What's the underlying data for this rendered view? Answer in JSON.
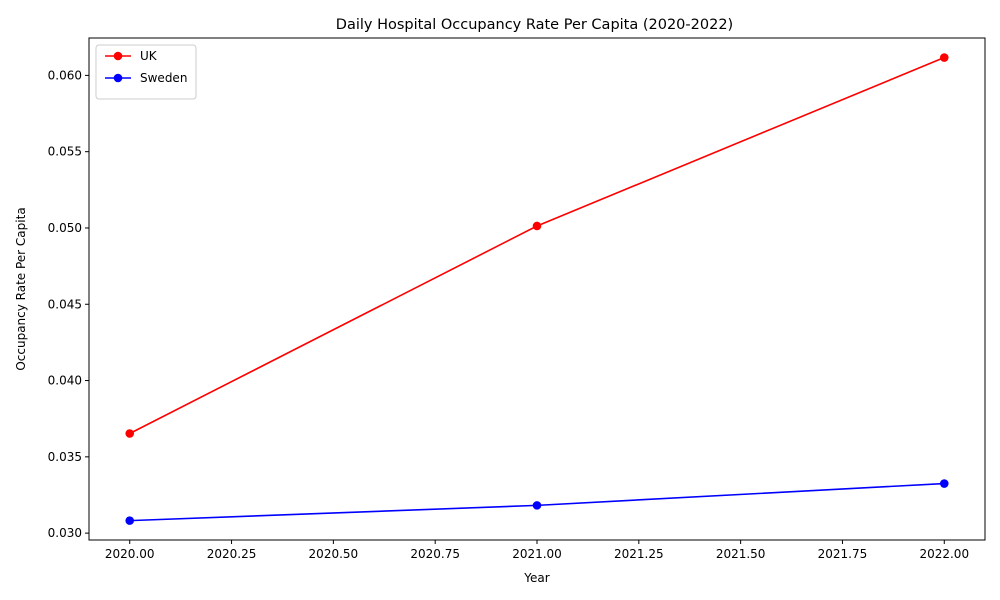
{
  "chart_data": {
    "type": "line",
    "title": "Daily Hospital Occupancy Rate Per Capita (2020-2022)",
    "xlabel": "Year",
    "ylabel": "Occupancy Rate Per Capita",
    "x": [
      2020,
      2021,
      2022
    ],
    "series": [
      {
        "name": "UK",
        "color": "#ff0000",
        "values": [
          0.03653,
          0.05013,
          0.06117
        ]
      },
      {
        "name": "Sweden",
        "color": "#0000ff",
        "values": [
          0.03082,
          0.03182,
          0.03325
        ]
      }
    ],
    "xlim": [
      2019.9,
      2022.1
    ],
    "ylim": [
      0.02955,
      0.06245
    ],
    "xticks": [
      2020.0,
      2020.25,
      2020.5,
      2020.75,
      2021.0,
      2021.25,
      2021.5,
      2021.75,
      2022.0
    ],
    "xtick_labels": [
      "2020.00",
      "2020.25",
      "2020.50",
      "2020.75",
      "2021.00",
      "2021.25",
      "2021.50",
      "2021.75",
      "2022.00"
    ],
    "yticks": [
      0.03,
      0.035,
      0.04,
      0.045,
      0.05,
      0.055,
      0.06
    ],
    "ytick_labels": [
      "0.030",
      "0.035",
      "0.040",
      "0.045",
      "0.050",
      "0.055",
      "0.060"
    ],
    "grid": false,
    "legend_position": "top-left"
  }
}
